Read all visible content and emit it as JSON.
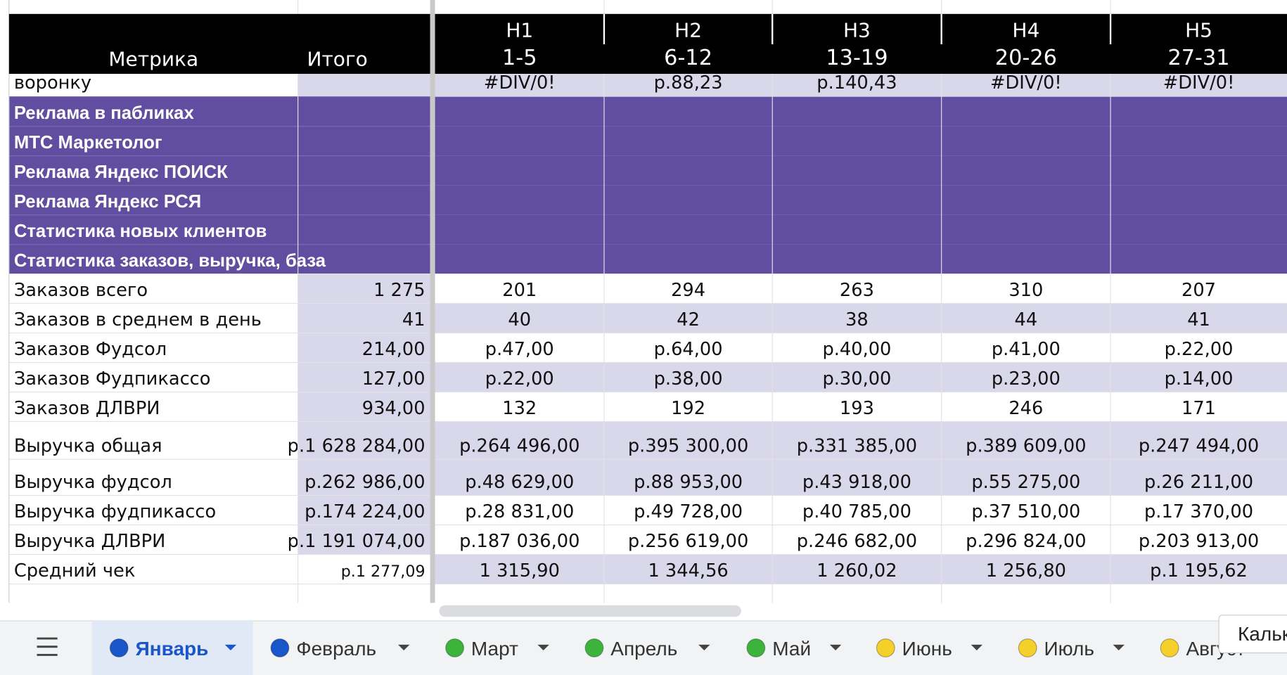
{
  "header": {
    "metric": "Метрика",
    "total": "Итого",
    "weeks": [
      {
        "name": "Н1",
        "range": "1-5"
      },
      {
        "name": "Н2",
        "range": "6-12"
      },
      {
        "name": "Н3",
        "range": "13-19"
      },
      {
        "name": "Н4",
        "range": "20-26"
      },
      {
        "name": "Н5",
        "range": "27-31"
      }
    ]
  },
  "partial_row": {
    "label": "воронку",
    "values": [
      "#DIV/0!",
      "р.88,23",
      "р.140,43",
      "#DIV/0!",
      "#DIV/0!"
    ]
  },
  "sections": [
    "Реклама в пабликах",
    "МТС Маркетолог",
    "Реклама Яндекс ПОИСК",
    "Реклама Яндекс РСЯ",
    "Статистика новых клиентов",
    "Статистика заказов, выручка, база"
  ],
  "rows": [
    {
      "label": "Заказов всего",
      "total": "1 275",
      "values": [
        "201",
        "294",
        "263",
        "310",
        "207"
      ],
      "total_highlight": true,
      "highlight": false
    },
    {
      "label": "Заказов в среднем в день",
      "total": "41",
      "values": [
        "40",
        "42",
        "38",
        "44",
        "41"
      ],
      "total_highlight": true,
      "highlight": true
    },
    {
      "label": "Заказов Фудсол",
      "total": "214,00",
      "values": [
        "р.47,00",
        "р.64,00",
        "р.40,00",
        "р.41,00",
        "р.22,00"
      ],
      "total_highlight": true,
      "highlight": false
    },
    {
      "label": "Заказов Фудпикассо",
      "total": "127,00",
      "values": [
        "р.22,00",
        "р.38,00",
        "р.30,00",
        "р.23,00",
        "р.14,00"
      ],
      "total_highlight": true,
      "highlight": true
    },
    {
      "label": "Заказов ДЛВРИ",
      "total": "934,00",
      "values": [
        "132",
        "192",
        "193",
        "246",
        "171"
      ],
      "total_highlight": true,
      "highlight": false
    },
    {
      "label": "Выручка общая",
      "total": "р.1 628 284,00",
      "values": [
        "р.264 496,00",
        "р.395 300,00",
        "р.331 385,00",
        "р.389 609,00",
        "р.247 494,00"
      ],
      "total_highlight": true,
      "highlight": true
    },
    {
      "label": "Выручка фудсол",
      "total": "р.262 986,00",
      "values": [
        "р.48 629,00",
        "р.88 953,00",
        "р.43 918,00",
        "р.55 275,00",
        "р.26 211,00"
      ],
      "total_highlight": true,
      "highlight": true
    },
    {
      "label": "Выручка фудпикассо",
      "total": "р.174 224,00",
      "values": [
        "р.28 831,00",
        "р.49 728,00",
        "р.40 785,00",
        "р.37 510,00",
        "р.17 370,00"
      ],
      "total_highlight": true,
      "highlight": false
    },
    {
      "label": "Выручка ДЛВРИ",
      "total": "р.1 191 074,00",
      "values": [
        "р.187 036,00",
        "р.256 619,00",
        "р.246 682,00",
        "р.296 824,00",
        "р.203 913,00"
      ],
      "total_highlight": true,
      "highlight": false
    },
    {
      "label": "Средний чек",
      "total": "р.1 277,09",
      "values": [
        "1 315,90",
        "1 344,56",
        "1 260,02",
        "1 256,80",
        "р.1 195,62"
      ],
      "total_highlight": false,
      "highlight": true
    }
  ],
  "tabs": [
    {
      "name": "Январь",
      "color": "#1a56c9",
      "active": true
    },
    {
      "name": "Февраль",
      "color": "#1a56c9",
      "active": false
    },
    {
      "name": "Март",
      "color": "#3cb43c",
      "active": false
    },
    {
      "name": "Апрель",
      "color": "#3cb43c",
      "active": false
    },
    {
      "name": "Май",
      "color": "#3cb43c",
      "active": false
    },
    {
      "name": "Июнь",
      "color": "#f5cf2a",
      "active": false
    },
    {
      "name": "Июль",
      "color": "#f5cf2a",
      "active": false
    },
    {
      "name": "Август",
      "color": "#f5cf2a",
      "active": false
    }
  ],
  "tooltip": "Кальк"
}
